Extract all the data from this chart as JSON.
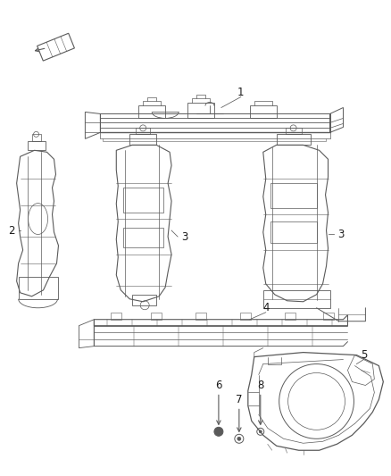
{
  "background_color": "#ffffff",
  "line_color": "#5a5a5a",
  "label_color": "#1a1a1a",
  "fig_width": 4.38,
  "fig_height": 5.33,
  "dpi": 100
}
